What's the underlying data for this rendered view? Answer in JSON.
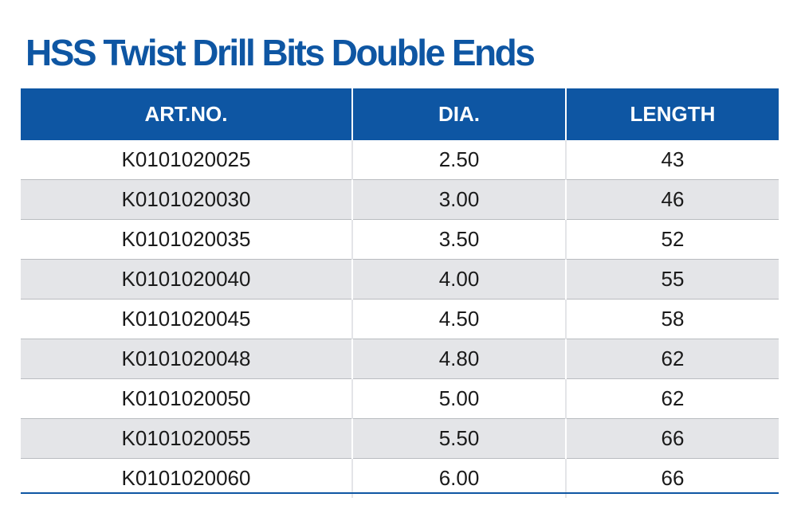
{
  "title": "HSS Twist Drill Bits  Double Ends",
  "colors": {
    "brand_blue": "#0e56a3",
    "row_stripe": "#e4e5e8",
    "text": "#1a1a1a"
  },
  "table": {
    "headers": [
      "ART.NO.",
      "DIA.",
      "LENGTH"
    ],
    "rows": [
      [
        "K0101020025",
        "2.50",
        "43"
      ],
      [
        "K0101020030",
        "3.00",
        "46"
      ],
      [
        "K0101020035",
        "3.50",
        "52"
      ],
      [
        "K0101020040",
        "4.00",
        "55"
      ],
      [
        "K0101020045",
        "4.50",
        "58"
      ],
      [
        "K0101020048",
        "4.80",
        "62"
      ],
      [
        "K0101020050",
        "5.00",
        "62"
      ],
      [
        "K0101020055",
        "5.50",
        "66"
      ],
      [
        "K0101020060",
        "6.00",
        "66"
      ]
    ]
  }
}
